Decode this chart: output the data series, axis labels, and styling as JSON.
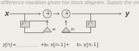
{
  "title_text": "Derive the difference equation given the block diagram. Supply the missing term",
  "title_fontsize": 4.8,
  "title_color": "#999999",
  "bg_color": "#f0ede8",
  "equation_prefix": "y[n]=",
  "equation_blank": "_________",
  "equation_plus": "+",
  "equation_a": "a₁ x[n-1]+",
  "equation_b": " b₁ y[n-1]",
  "eq_fontsize": 5.2,
  "eq_color": "#555555",
  "diagram": {
    "x_label": "x",
    "y_label": "y",
    "line_color": "#777777",
    "box_color": "#d8d4ce",
    "box_edge": "#888888",
    "circle_color": "#e8e5e0",
    "circle_edge": "#888888",
    "triangle_color": "#d8d4ce",
    "triangle_edge": "#888888",
    "text_color": "#555555",
    "z_label": "z⁻¹",
    "a_label": "a₁",
    "b_label": "b₁",
    "plus_color": "#555555"
  }
}
